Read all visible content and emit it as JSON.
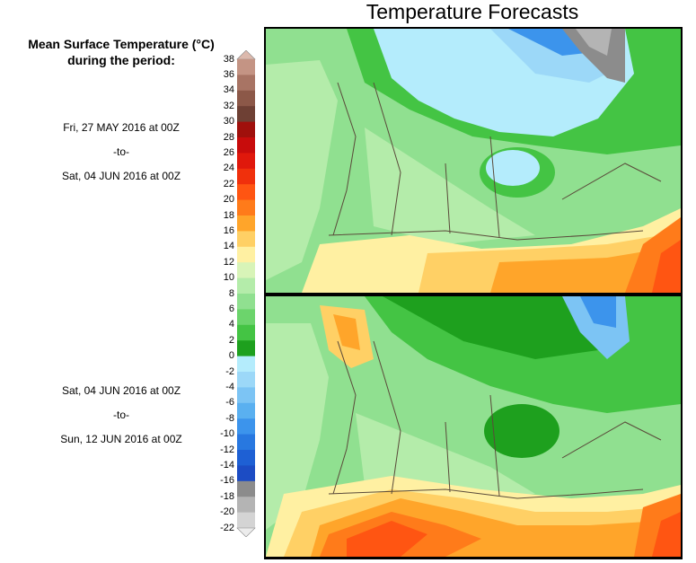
{
  "title": "Temperature Forecasts",
  "legend": {
    "title_line1": "Mean Surface Temperature (°C)",
    "title_line2": "during the period:",
    "labels": [
      "38",
      "36",
      "34",
      "32",
      "30",
      "28",
      "26",
      "24",
      "22",
      "20",
      "18",
      "16",
      "14",
      "12",
      "10",
      "8",
      "6",
      "4",
      "2",
      "0",
      "-2",
      "-4",
      "-6",
      "-8",
      "-10",
      "-12",
      "-14",
      "-16",
      "-18",
      "-20",
      "-22"
    ],
    "colors": [
      "#dcb9ad",
      "#c49484",
      "#a87464",
      "#8c5848",
      "#6e4034",
      "#a0100c",
      "#c80c0c",
      "#e0180c",
      "#f0300c",
      "#ff5512",
      "#ff7b1a",
      "#ffa52a",
      "#ffd065",
      "#fff0a2",
      "#d8f4b8",
      "#b4ecaa",
      "#90e090",
      "#6cd46c",
      "#44c444",
      "#1ea01e",
      "#b4ecfc",
      "#9cd8f8",
      "#7cc4f4",
      "#5ab0f0",
      "#3c94ec",
      "#2878e0",
      "#1e60d4",
      "#1c4cc4",
      "#8c8c8c",
      "#b4b4b4",
      "#d4d4d4",
      "#ececec"
    ]
  },
  "periods": [
    {
      "start": "Fri, 27 MAY 2016 at 00Z",
      "sep": "-to-",
      "end": "Sat, 04 JUN 2016 at 00Z"
    },
    {
      "start": "Sat, 04 JUN 2016 at 00Z",
      "sep": "-to-",
      "end": "Sun, 12 JUN 2016 at 00Z"
    }
  ]
}
